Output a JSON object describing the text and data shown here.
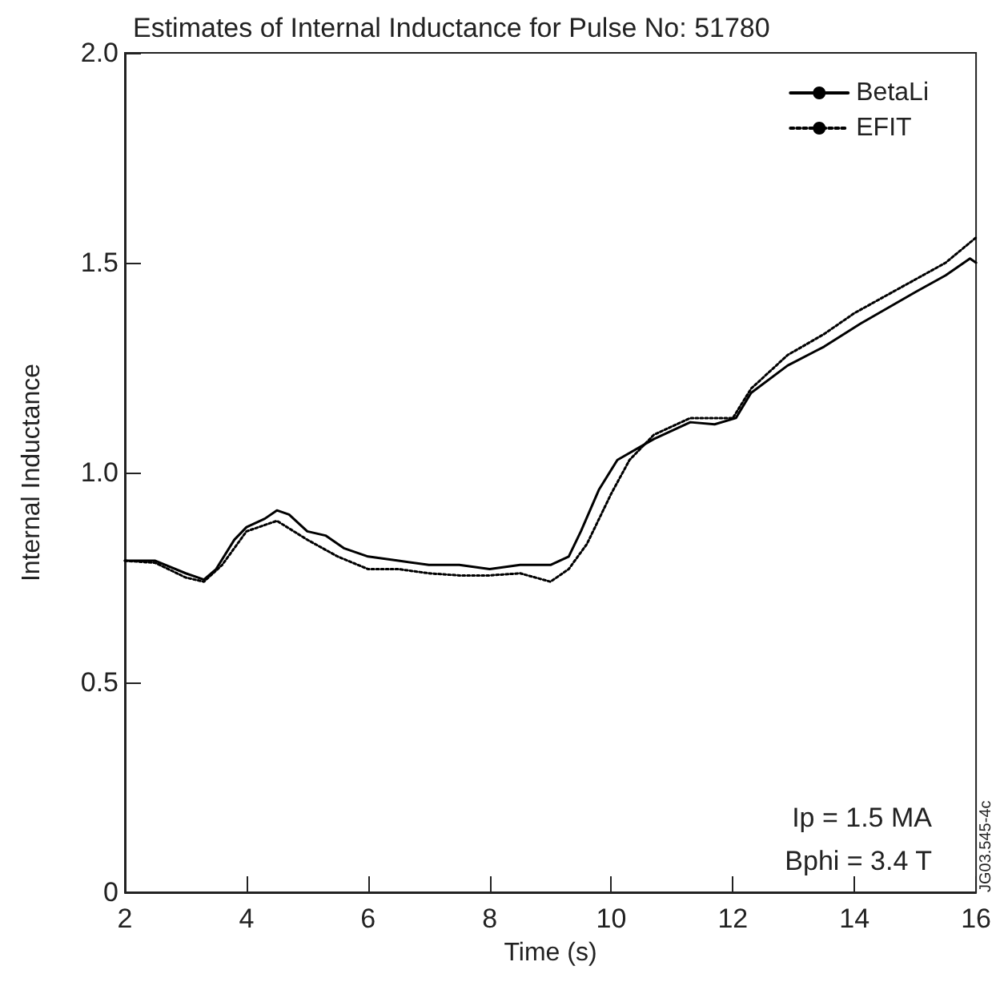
{
  "chart_data": {
    "type": "line",
    "title": "Estimates of Internal Inductance for Pulse No: 51780",
    "xlabel": "Time (s)",
    "ylabel": "Internal Inductance",
    "xlim": [
      2,
      16
    ],
    "xticks": [
      2,
      4,
      6,
      8,
      10,
      12,
      14,
      16
    ],
    "ylim": [
      0,
      2
    ],
    "yticks": [
      {
        "value": 0,
        "label": "0"
      },
      {
        "value": 0.5,
        "label": "0.5"
      },
      {
        "value": 1,
        "label": "1.0"
      },
      {
        "value": 1.5,
        "label": "1.5"
      },
      {
        "value": 2,
        "label": "2.0"
      }
    ],
    "grid": false,
    "legend": "top right",
    "marker": "none",
    "series": [
      {
        "name": "BetaLi",
        "color": "#000000",
        "line_style": "solid",
        "x": [
          2,
          2.5,
          3,
          3.3,
          3.5,
          3.8,
          4,
          4.3,
          4.5,
          4.7,
          5,
          5.3,
          5.6,
          6,
          6.5,
          7,
          7.5,
          8,
          8.5,
          9,
          9.3,
          9.5,
          9.8,
          10.1,
          10.7,
          11.3,
          11.7,
          12.05,
          12.3,
          12.9,
          13.5,
          14.1,
          15,
          15.5,
          15.9,
          16
        ],
        "values": [
          0.79,
          0.79,
          0.76,
          0.745,
          0.77,
          0.84,
          0.87,
          0.89,
          0.91,
          0.9,
          0.86,
          0.85,
          0.82,
          0.8,
          0.79,
          0.78,
          0.78,
          0.77,
          0.78,
          0.78,
          0.8,
          0.86,
          0.96,
          1.03,
          1.08,
          1.12,
          1.115,
          1.13,
          1.19,
          1.255,
          1.3,
          1.355,
          1.43,
          1.47,
          1.51,
          1.5
        ]
      },
      {
        "name": "EFIT",
        "color": "#000000",
        "line_style": "dotted",
        "x": [
          2,
          2.5,
          3,
          3.3,
          3.6,
          4,
          4.5,
          5,
          5.5,
          6,
          6.5,
          7,
          7.5,
          8,
          8.5,
          9,
          9.3,
          9.6,
          10,
          10.3,
          10.7,
          11.3,
          11.7,
          12,
          12.3,
          12.9,
          13.5,
          14,
          15,
          15.5,
          16
        ],
        "values": [
          0.79,
          0.785,
          0.75,
          0.74,
          0.78,
          0.86,
          0.885,
          0.84,
          0.8,
          0.77,
          0.77,
          0.76,
          0.755,
          0.755,
          0.76,
          0.74,
          0.77,
          0.83,
          0.95,
          1.03,
          1.09,
          1.13,
          1.13,
          1.13,
          1.2,
          1.28,
          1.33,
          1.38,
          1.46,
          1.5,
          1.56
        ]
      }
    ],
    "annotations": [
      "Ip = 1.5 MA",
      "Bphi = 3.4 T",
      "JG03.545-4c"
    ]
  }
}
